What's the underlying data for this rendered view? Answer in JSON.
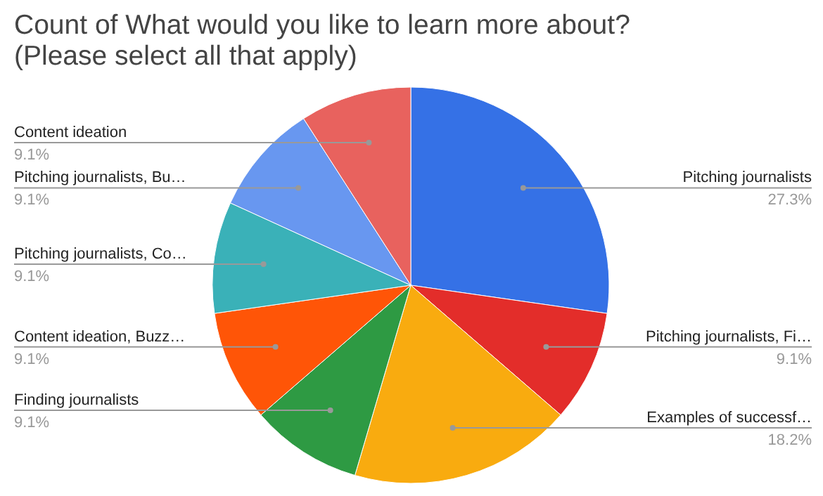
{
  "chart_data": {
    "type": "pie",
    "title": "Count of What would you like to learn more about?\n(Please select all that apply)",
    "categories": [
      "Pitching journalists",
      "Pitching journalists, Fi…",
      "Examples of successf…",
      "Finding journalists",
      "Content ideation, Buzz…",
      "Pitching journalists, Co…",
      "Pitching journalists, Bu…",
      "Content ideation"
    ],
    "values": [
      27.3,
      9.1,
      18.2,
      9.1,
      9.1,
      9.1,
      9.1,
      9.1
    ],
    "colors": [
      "#3571e6",
      "#e32d2a",
      "#f9ab0f",
      "#2e9a43",
      "#ff5507",
      "#3ab1b8",
      "#6897f0",
      "#e8625e"
    ],
    "value_labels": [
      "27.3%",
      "9.1%",
      "18.2%",
      "9.1%",
      "9.1%",
      "9.1%",
      "9.1%",
      "9.1%"
    ]
  }
}
